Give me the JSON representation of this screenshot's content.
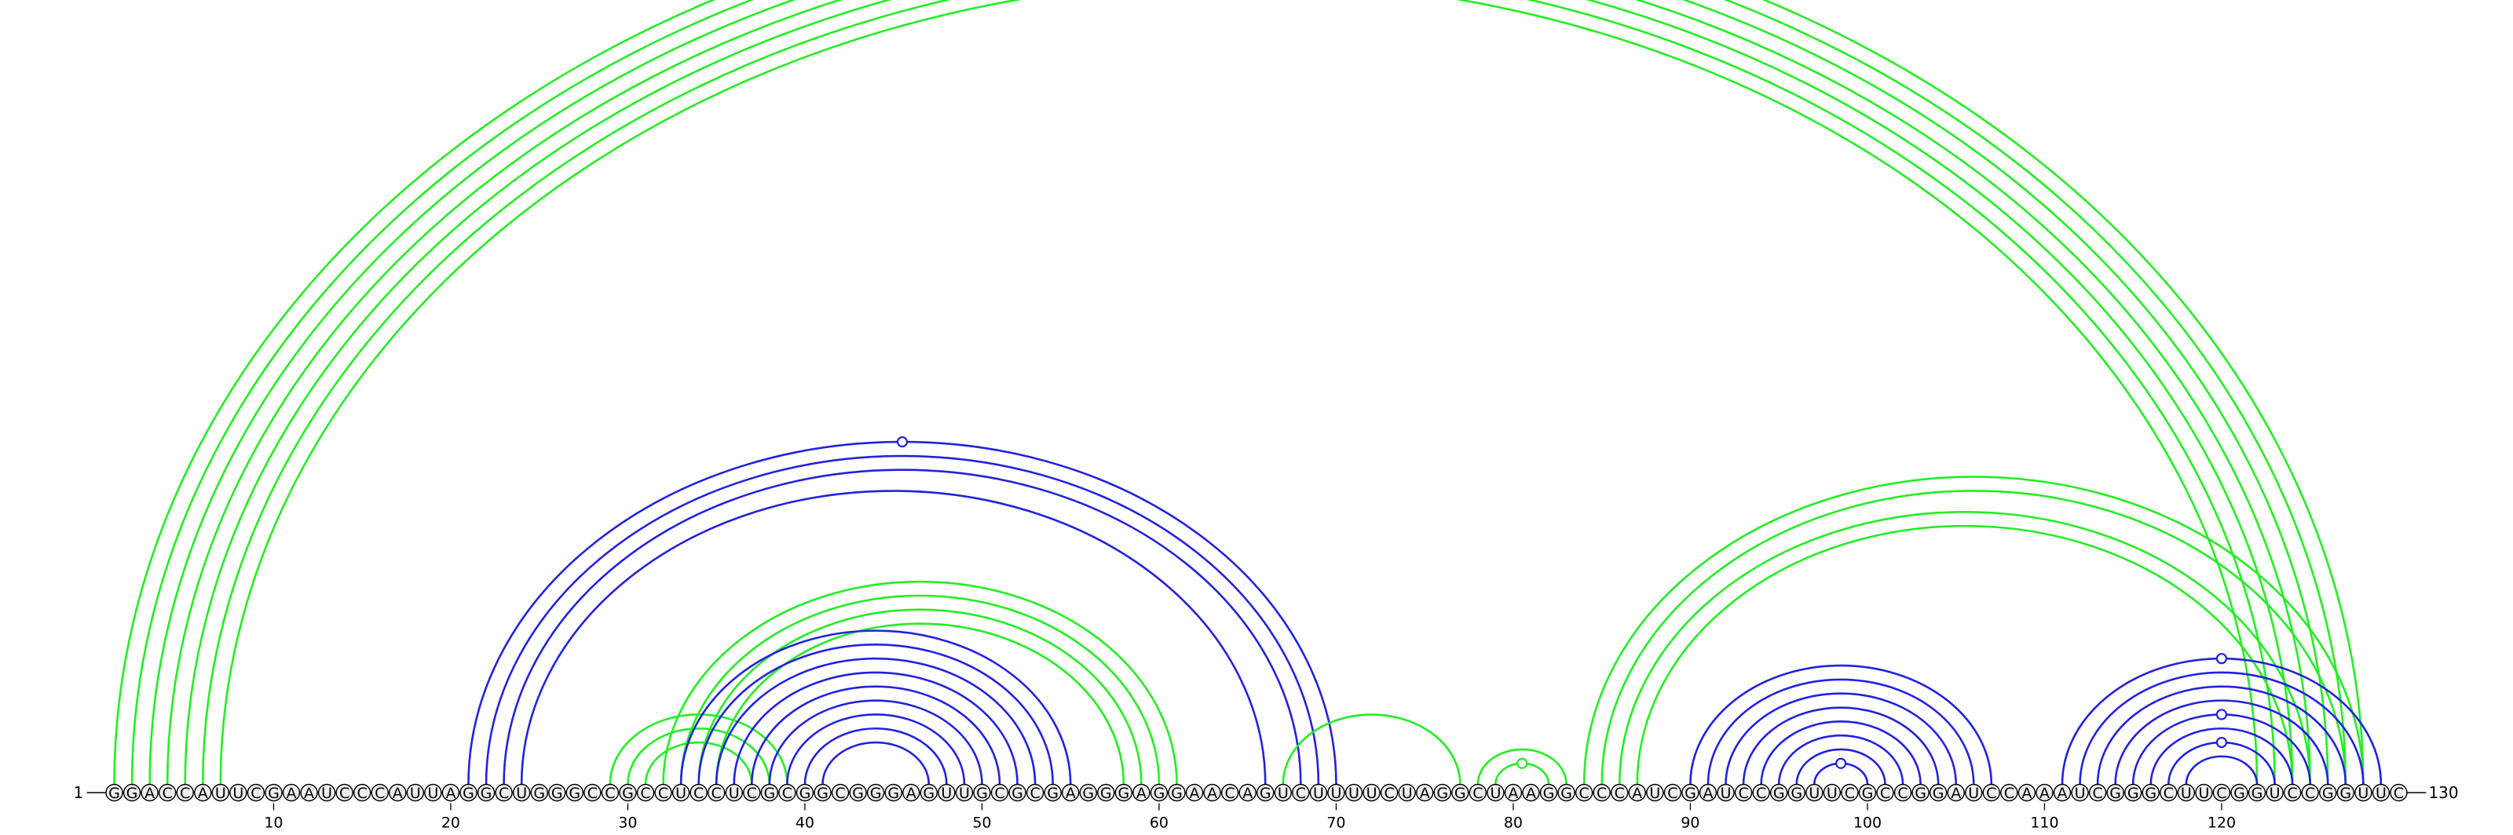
{
  "diagram": {
    "sequence": "GGACCAUUCGAAUCCCAUUAGGCUGGGCCGCCUCCUCGCGGCGGGAGUUGCGCGAGGGAGGAACAGUCUUUUCUAGGCUAAGGCCCAUCGAUCCGGUUCGCCGGAUCCAAAUCGGGCUUCGGUCCGGUUC",
    "start_label": "1",
    "end_label": "130",
    "tick_labels": [
      "10",
      "20",
      "30",
      "40",
      "50",
      "60",
      "70",
      "80",
      "90",
      "100",
      "110",
      "120"
    ],
    "colors": {
      "green": "#22ee22",
      "blue": "#2222dd",
      "nucleotide_fill": "#eeeeee",
      "outline": "#000000"
    },
    "arcs": [
      {
        "i": 1,
        "j": 128,
        "color": "green"
      },
      {
        "i": 2,
        "j": 127,
        "color": "green"
      },
      {
        "i": 3,
        "j": 126,
        "color": "green"
      },
      {
        "i": 4,
        "j": 125,
        "color": "green"
      },
      {
        "i": 5,
        "j": 124,
        "color": "green"
      },
      {
        "i": 6,
        "j": 123,
        "color": "green"
      },
      {
        "i": 7,
        "j": 122,
        "color": "green"
      },
      {
        "i": 21,
        "j": 70,
        "color": "blue"
      },
      {
        "i": 22,
        "j": 69,
        "color": "blue"
      },
      {
        "i": 23,
        "j": 68,
        "color": "blue"
      },
      {
        "i": 24,
        "j": 66,
        "color": "blue"
      },
      {
        "i": 29,
        "j": 39,
        "color": "green"
      },
      {
        "i": 30,
        "j": 38,
        "color": "green"
      },
      {
        "i": 31,
        "j": 37,
        "color": "green"
      },
      {
        "i": 32,
        "j": 61,
        "color": "green"
      },
      {
        "i": 33,
        "j": 60,
        "color": "green"
      },
      {
        "i": 34,
        "j": 59,
        "color": "green"
      },
      {
        "i": 35,
        "j": 58,
        "color": "green"
      },
      {
        "i": 33,
        "j": 55,
        "color": "blue"
      },
      {
        "i": 34,
        "j": 54,
        "color": "blue"
      },
      {
        "i": 35,
        "j": 53,
        "color": "blue"
      },
      {
        "i": 36,
        "j": 52,
        "color": "blue"
      },
      {
        "i": 37,
        "j": 51,
        "color": "blue"
      },
      {
        "i": 38,
        "j": 50,
        "color": "blue"
      },
      {
        "i": 39,
        "j": 49,
        "color": "blue"
      },
      {
        "i": 40,
        "j": 48,
        "color": "blue"
      },
      {
        "i": 41,
        "j": 47,
        "color": "blue"
      },
      {
        "i": 67,
        "j": 77,
        "color": "green"
      },
      {
        "i": 78,
        "j": 83,
        "color": "green"
      },
      {
        "i": 79,
        "j": 82,
        "color": "green"
      },
      {
        "i": 84,
        "j": 128,
        "color": "green"
      },
      {
        "i": 85,
        "j": 127,
        "color": "green"
      },
      {
        "i": 86,
        "j": 125,
        "color": "green"
      },
      {
        "i": 87,
        "j": 124,
        "color": "green"
      },
      {
        "i": 90,
        "j": 107,
        "color": "blue"
      },
      {
        "i": 91,
        "j": 106,
        "color": "blue"
      },
      {
        "i": 92,
        "j": 105,
        "color": "blue"
      },
      {
        "i": 93,
        "j": 104,
        "color": "blue"
      },
      {
        "i": 94,
        "j": 103,
        "color": "blue"
      },
      {
        "i": 95,
        "j": 102,
        "color": "blue"
      },
      {
        "i": 96,
        "j": 101,
        "color": "blue"
      },
      {
        "i": 97,
        "j": 100,
        "color": "blue"
      },
      {
        "i": 111,
        "j": 129,
        "color": "blue"
      },
      {
        "i": 112,
        "j": 128,
        "color": "blue"
      },
      {
        "i": 113,
        "j": 127,
        "color": "blue"
      },
      {
        "i": 114,
        "j": 126,
        "color": "blue"
      },
      {
        "i": 115,
        "j": 125,
        "color": "blue"
      },
      {
        "i": 116,
        "j": 124,
        "color": "blue"
      },
      {
        "i": 117,
        "j": 123,
        "color": "blue"
      },
      {
        "i": 118,
        "j": 122,
        "color": "blue"
      }
    ]
  }
}
